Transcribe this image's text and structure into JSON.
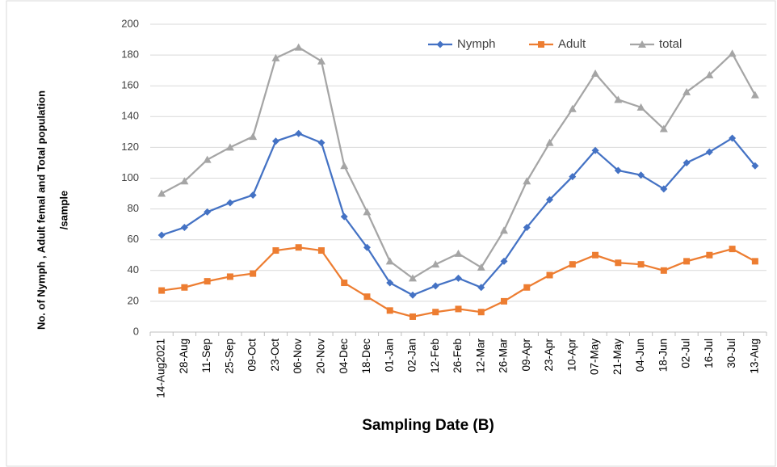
{
  "chart_data": {
    "type": "line",
    "x_label": "Sampling Date (B)",
    "y_label": [
      "No. of Nymph , Adult femal and Total population",
      "/sample"
    ],
    "categories": [
      "14-Aug2021",
      "28-Aug",
      "11-Sep",
      "25-Sep",
      "09-Oct",
      "23-Oct",
      "06-Nov",
      "20-Nov",
      "04-Dec",
      "18-Dec",
      "01-Jan",
      "02-Jan",
      "12-Feb",
      "26-Feb",
      "12-Mar",
      "26-Mar",
      "09-Apr",
      "23-Apr",
      "10-Apr",
      "07-May",
      "21-May",
      "04-Jun",
      "18-Jun",
      "02-Jul",
      "16-Jul",
      "30-Jul",
      "13-Aug"
    ],
    "series": [
      {
        "name": "Nymph",
        "color": "#4472c4",
        "marker": "diamond",
        "values": [
          63,
          68,
          78,
          84,
          89,
          124,
          129,
          123,
          75,
          55,
          32,
          24,
          30,
          35,
          29,
          46,
          68,
          86,
          101,
          118,
          105,
          102,
          93,
          110,
          117,
          126,
          108
        ]
      },
      {
        "name": "Adult",
        "color": "#ed7d31",
        "marker": "square",
        "values": [
          27,
          29,
          33,
          36,
          38,
          53,
          55,
          53,
          32,
          23,
          14,
          10,
          13,
          15,
          13,
          20,
          29,
          37,
          44,
          50,
          45,
          44,
          40,
          46,
          50,
          54,
          46
        ]
      },
      {
        "name": "total",
        "color": "#a5a5a5",
        "marker": "triangle",
        "values": [
          90,
          98,
          112,
          120,
          127,
          178,
          185,
          176,
          108,
          78,
          46,
          35,
          44,
          51,
          42,
          66,
          98,
          123,
          145,
          168,
          151,
          146,
          132,
          156,
          167,
          181,
          154
        ]
      }
    ],
    "ylim": [
      0,
      200
    ],
    "yticks": [
      0,
      20,
      40,
      60,
      80,
      100,
      120,
      140,
      160,
      180,
      200
    ],
    "grid": true,
    "legend": "top"
  }
}
